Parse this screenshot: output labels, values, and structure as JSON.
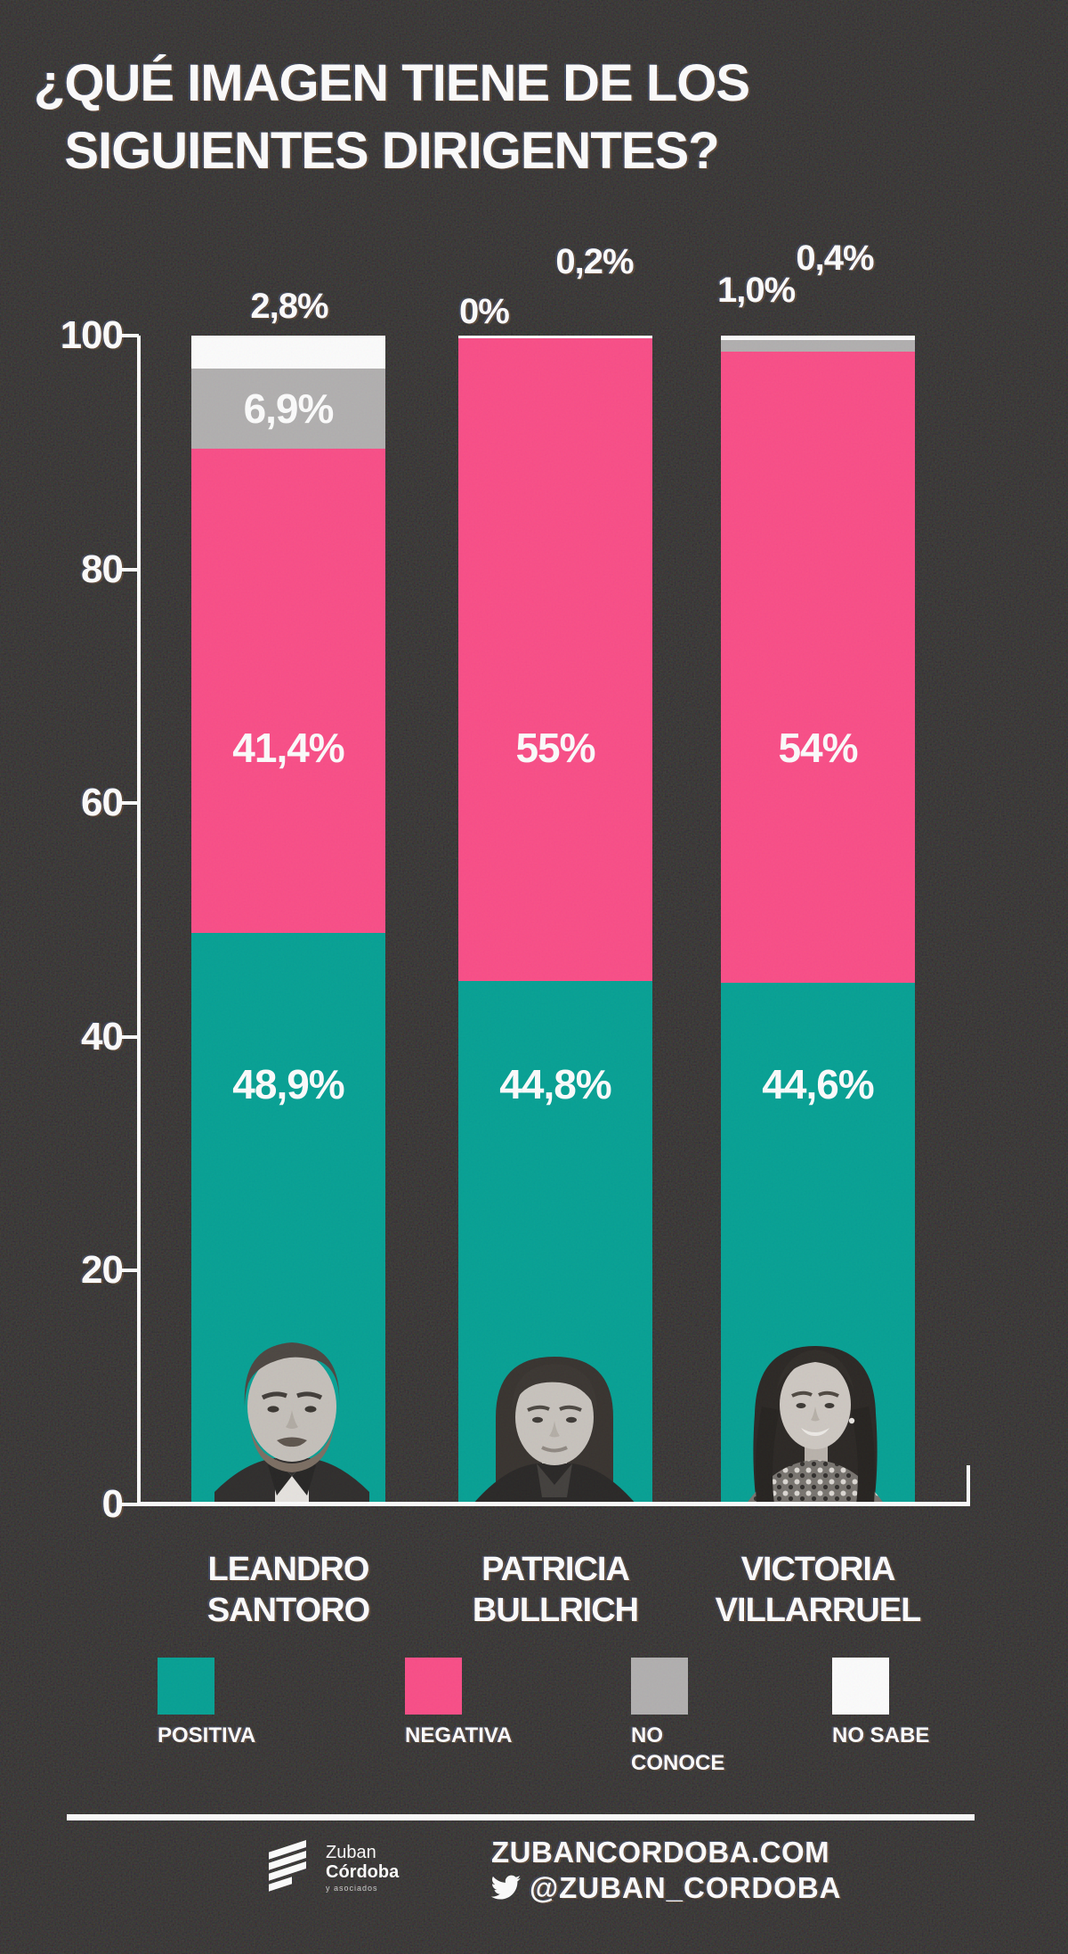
{
  "title": {
    "line1": "¿QUÉ IMAGEN TIENE DE LOS",
    "line2": "SIGUIENTES DIRIGENTES?"
  },
  "chart_data": {
    "type": "bar",
    "stacked": true,
    "categories": [
      "LEANDRO SANTORO",
      "PATRICIA BULLRICH",
      "VICTORIA VILLARRUEL"
    ],
    "series": [
      {
        "name": "POSITIVA",
        "color": "#02a194",
        "values": [
          48.9,
          44.8,
          44.6
        ]
      },
      {
        "name": "NEGATIVA",
        "color": "#fc4c87",
        "values": [
          41.4,
          55,
          54
        ]
      },
      {
        "name": "NO CONOCE",
        "color": "#b2b0b0",
        "values": [
          6.9,
          0,
          1.0
        ]
      },
      {
        "name": "NO SABE",
        "color": "#ffffff",
        "values": [
          2.8,
          0.2,
          0.4
        ]
      }
    ],
    "ylim": [
      0,
      100
    ],
    "yticks": [
      0,
      20,
      40,
      60,
      80,
      100
    ],
    "grid": false,
    "legend_position": "bottom"
  },
  "bars": [
    {
      "name_line1": "LEANDRO",
      "name_line2": "SANTORO",
      "labels": {
        "positiva": "48,9%",
        "negativa": "41,4%",
        "no_conoce": "6,9%",
        "no_sabe": "2,8%"
      }
    },
    {
      "name_line1": "PATRICIA",
      "name_line2": "BULLRICH",
      "labels": {
        "positiva": "44,8%",
        "negativa": "55%",
        "no_conoce": "0%",
        "no_sabe": "0,2%"
      }
    },
    {
      "name_line1": "VICTORIA",
      "name_line2": "VILLARRUEL",
      "labels": {
        "positiva": "44,6%",
        "negativa": "54%",
        "no_conoce": "1,0%",
        "no_sabe": "0,4%"
      }
    }
  ],
  "legend": [
    {
      "label": "POSITIVA",
      "color": "#02a194"
    },
    {
      "label": "NEGATIVA",
      "color": "#fc4c87"
    },
    {
      "label": "NO\nCONOCE",
      "color": "#b2b0b0"
    },
    {
      "label": "NO SABE",
      "color": "#ffffff"
    }
  ],
  "footer": {
    "brand_line1": "Zuban",
    "brand_line2": "Córdoba",
    "brand_line3": "y asociados",
    "website": "ZUBANCORDOBA.COM",
    "twitter_handle": "@ZUBAN_CORDOBA"
  },
  "colors": {
    "background": "#1d1a19",
    "positiva": "#02a194",
    "negativa": "#fc4c87",
    "no_conoce": "#b2b0b0",
    "no_sabe": "#ffffff",
    "text": "#ffffff"
  }
}
